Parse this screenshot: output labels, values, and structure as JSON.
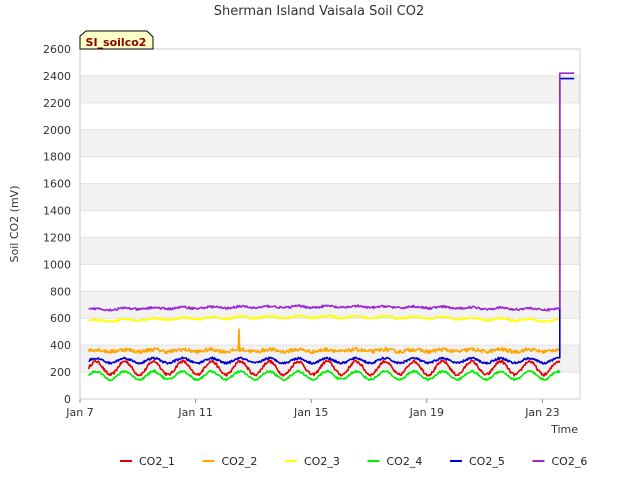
{
  "chart_data": {
    "type": "line",
    "title": "Sherman Island Vaisala Soil CO2",
    "site_label": "SI_soilco2",
    "xlabel": "Time",
    "ylabel": "Soil CO2 (mV)",
    "ylim": [
      0,
      2600
    ],
    "yticks": [
      0,
      200,
      400,
      600,
      800,
      1000,
      1200,
      1400,
      1600,
      1800,
      2000,
      2200,
      2400,
      2600
    ],
    "xlim": [
      7,
      24.3
    ],
    "xticks": [
      {
        "day": 7,
        "label": "Jan 7"
      },
      {
        "day": 11,
        "label": "Jan 11"
      },
      {
        "day": 15,
        "label": "Jan 15"
      },
      {
        "day": 19,
        "label": "Jan 19"
      },
      {
        "day": 23,
        "label": "Jan 23"
      }
    ],
    "x_start": 7.3,
    "x_jump": 23.6,
    "x_end": 24.1,
    "series": [
      {
        "name": "CO2_1",
        "color": "#e00000",
        "base": 230,
        "amp": 50,
        "noise": 10,
        "trend": 0,
        "after": null
      },
      {
        "name": "CO2_2",
        "color": "#ffa500",
        "base": 360,
        "amp": 8,
        "noise": 14,
        "trend": 0,
        "spike": {
          "day": 12.5,
          "value": 520
        },
        "after": null
      },
      {
        "name": "CO2_3",
        "color": "#ffff00",
        "base": 580,
        "amp": 8,
        "noise": 8,
        "trend": 30,
        "after": null
      },
      {
        "name": "CO2_4",
        "color": "#00ee00",
        "base": 175,
        "amp": 30,
        "noise": 8,
        "trend": 0,
        "after": null
      },
      {
        "name": "CO2_5",
        "color": "#0000cc",
        "base": 285,
        "amp": 18,
        "noise": 8,
        "trend": 0,
        "after": 2380
      },
      {
        "name": "CO2_6",
        "color": "#9a28d0",
        "base": 665,
        "amp": 6,
        "noise": 8,
        "trend": 20,
        "after": 2420
      }
    ]
  }
}
